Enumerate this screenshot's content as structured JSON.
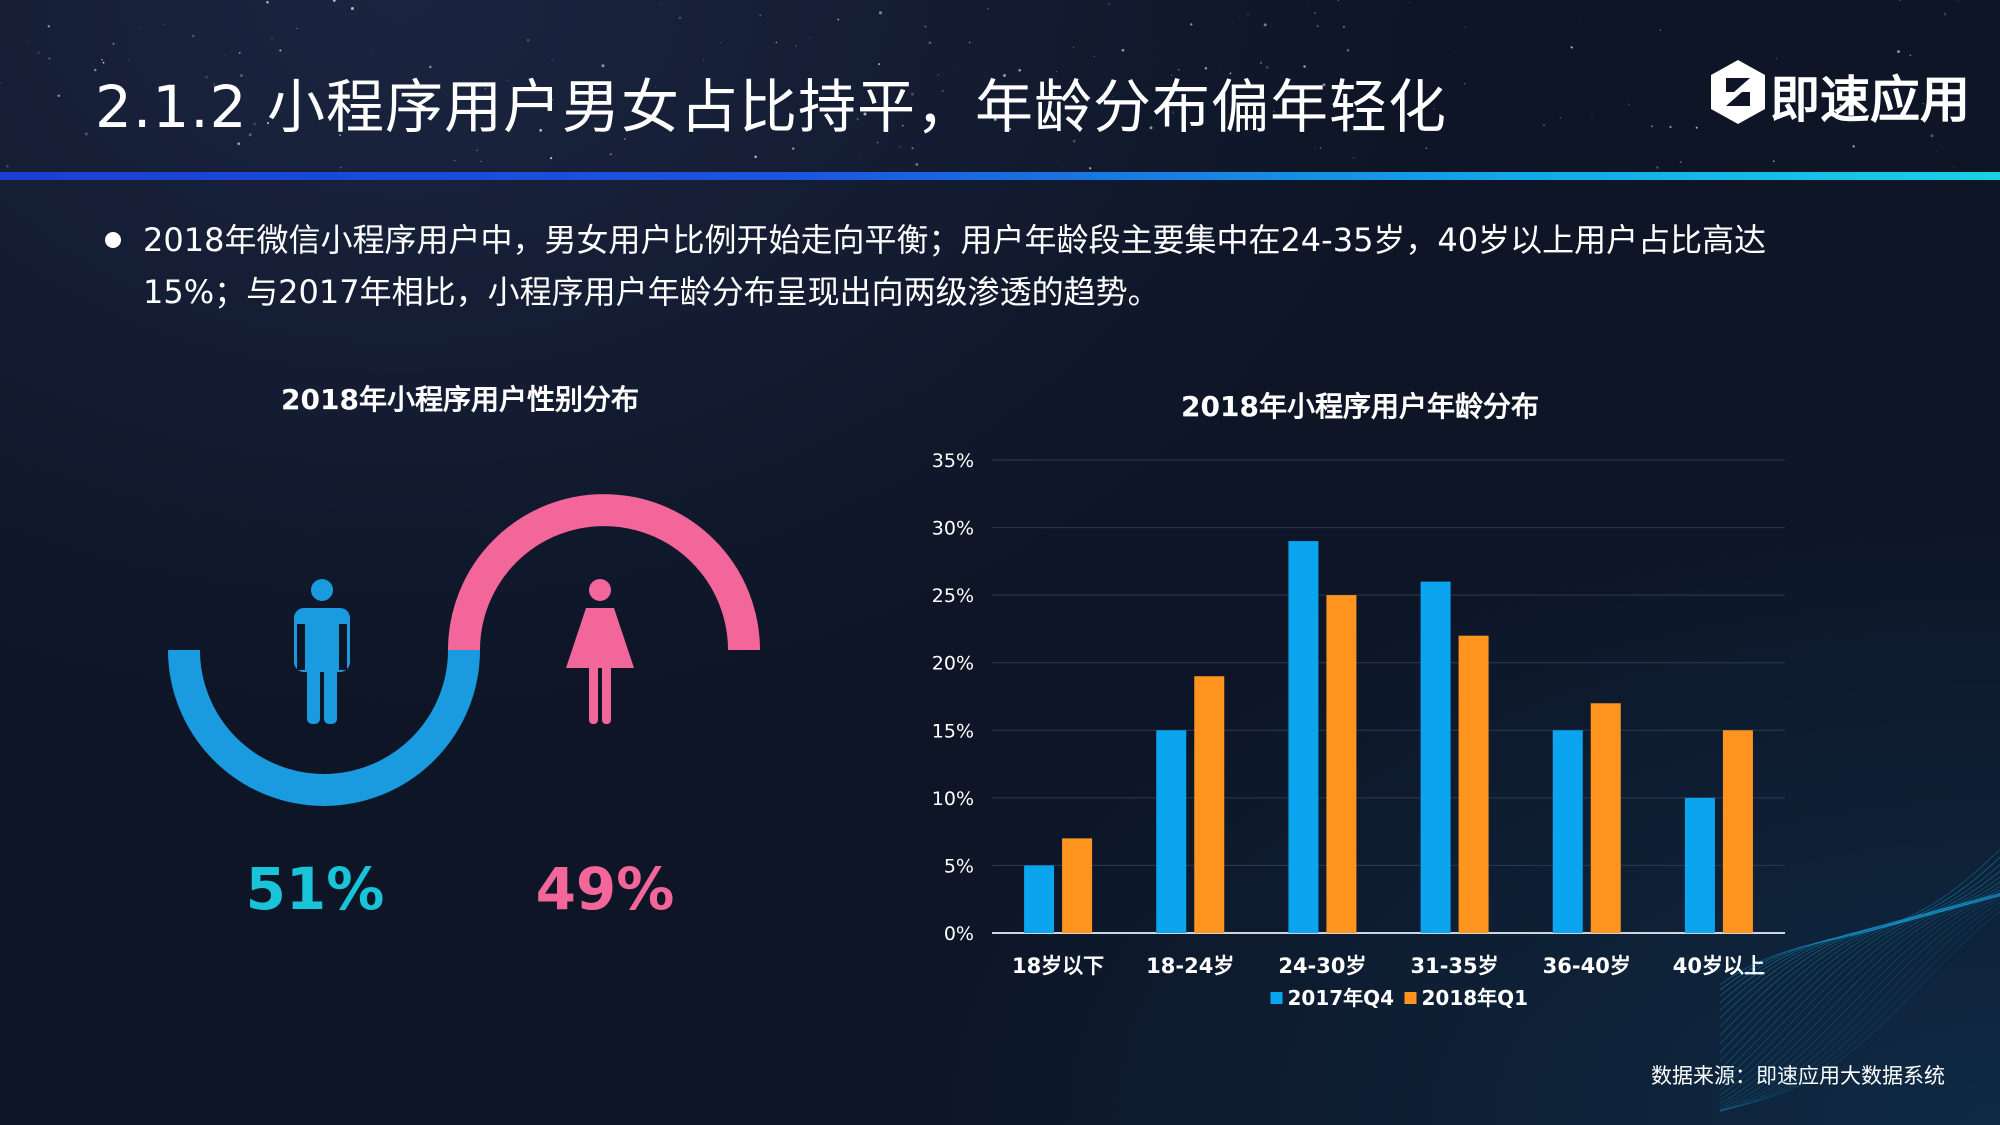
{
  "header": {
    "title": "2.1.2  小程序用户男女占比持平，年龄分布偏年轻化",
    "logo_text": "即速应用"
  },
  "description": "2018年微信小程序用户中，男女用户比例开始走向平衡；用户年龄段主要集中在24-35岁，40岁以上用户占比高达15%；与2017年相比，小程序用户年龄分布呈现出向两级渗透的趋势。",
  "source": "数据来源：即速应用大数据系统",
  "colors": {
    "male": "#1a9be0",
    "female": "#f3669a",
    "series_2017": "#0aa5ee",
    "series_2018": "#ff951f"
  },
  "chart_data": [
    {
      "type": "donut",
      "title": "2018年小程序用户性别分布",
      "categories": [
        "男",
        "女"
      ],
      "values": [
        51,
        49
      ],
      "labels": [
        "51%",
        "49%"
      ],
      "icons": [
        "male-person-icon",
        "female-person-icon"
      ]
    },
    {
      "type": "bar",
      "title": "2018年小程序用户年龄分布",
      "categories": [
        "18岁以下",
        "18-24岁",
        "24-30岁",
        "31-35岁",
        "36-40岁",
        "40岁以上"
      ],
      "series": [
        {
          "name": "2017年Q4",
          "values": [
            5,
            15,
            29,
            26,
            15,
            10
          ]
        },
        {
          "name": "2018年Q1",
          "values": [
            7,
            19,
            25,
            22,
            17,
            15
          ]
        }
      ],
      "ylim": [
        0,
        35
      ],
      "yticks": [
        "0%",
        "5%",
        "10%",
        "15%",
        "20%",
        "25%",
        "30%",
        "35%"
      ],
      "grid": true,
      "legend": "bottom"
    }
  ]
}
